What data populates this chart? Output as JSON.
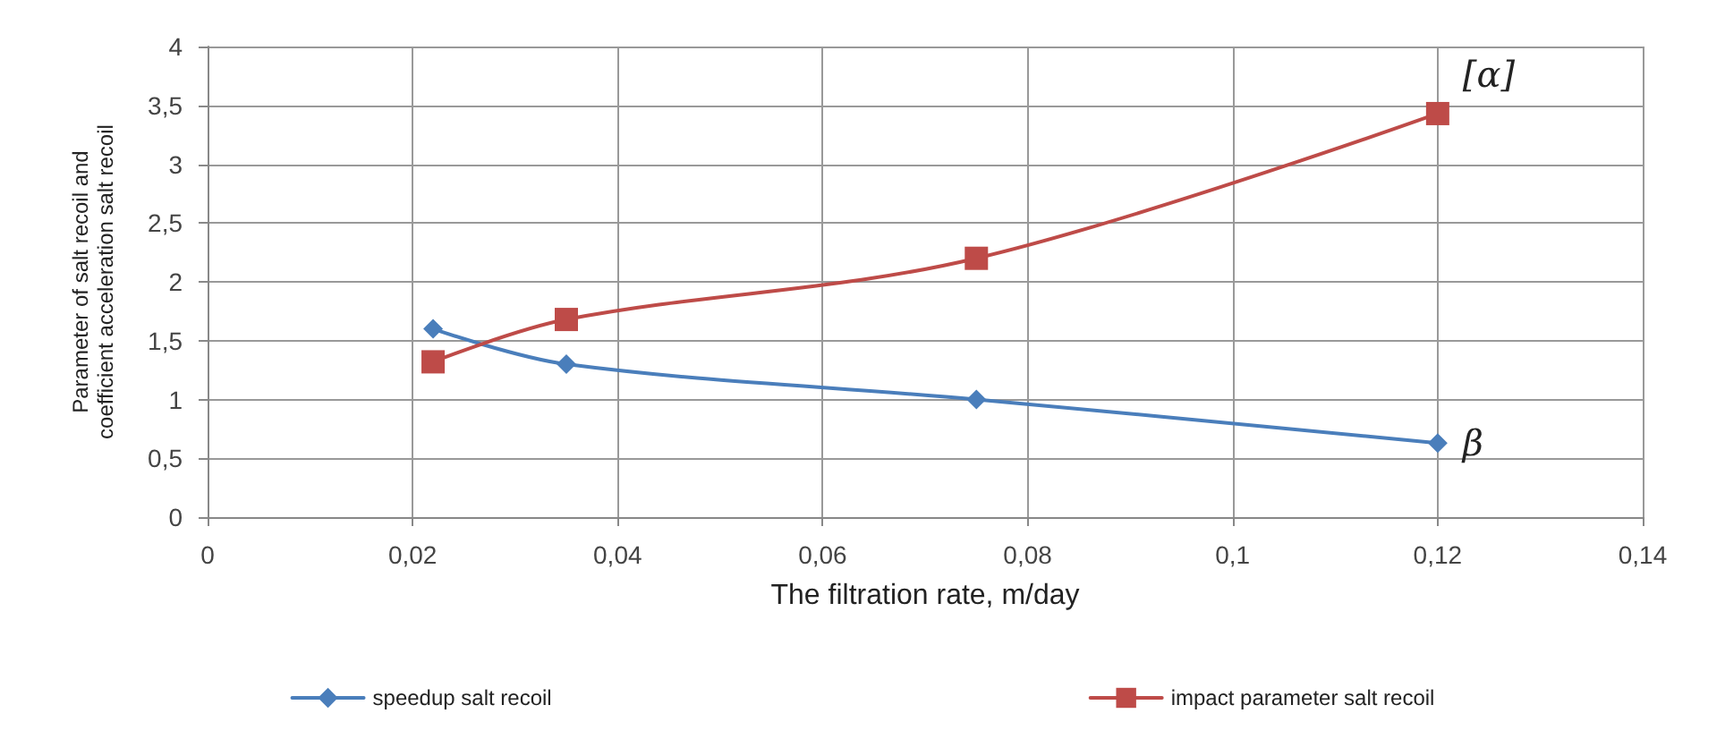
{
  "chart_data": {
    "type": "line",
    "xlabel": "The filtration rate, m/day",
    "ylabel": "Parameter of salt recoil and coefficient acceleration salt recoil",
    "x": [
      0.022,
      0.035,
      0.075,
      0.12
    ],
    "series": [
      {
        "name": "speedup salt recoil",
        "color": "#4a7ebb",
        "marker": "diamond",
        "values": [
          1.6,
          1.3,
          1.0,
          0.63
        ]
      },
      {
        "name": "impact parameter salt recoil",
        "color": "#be4b48",
        "marker": "square",
        "values": [
          1.32,
          1.68,
          2.2,
          3.43
        ]
      }
    ],
    "xlim": [
      0,
      0.14
    ],
    "xticks": [
      0,
      {
        "value": 0.02,
        "label": "0,02"
      },
      {
        "value": 0.04,
        "label": "0,04"
      },
      {
        "value": 0.06,
        "label": "0,06"
      },
      {
        "value": 0.08,
        "label": "0,08"
      },
      {
        "value": 0.1,
        "label": "0,1"
      },
      {
        "value": 0.12,
        "label": "0,12"
      },
      {
        "value": 0.14,
        "label": "0,14"
      }
    ],
    "ylim": [
      0,
      4
    ],
    "yticks": [
      0,
      {
        "value": 0.5,
        "label": "0,5"
      },
      1,
      {
        "value": 1.5,
        "label": "1,5"
      },
      2,
      {
        "value": 2.5,
        "label": "2,5"
      },
      3,
      {
        "value": 3.5,
        "label": "3,5"
      },
      4
    ],
    "annotations": [
      {
        "text": "[α]",
        "x": 0.12,
        "y": 3.43
      },
      {
        "text": "β",
        "x": 0.12,
        "y": 0.63
      }
    ],
    "grid": true,
    "legend": "bottom",
    "line_style": "solid"
  }
}
